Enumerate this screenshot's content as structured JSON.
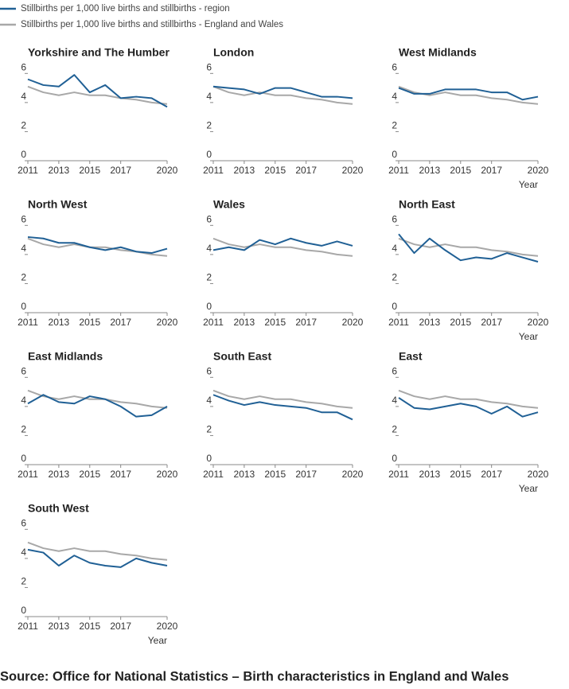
{
  "legend": [
    {
      "name": "Stillbirths per 1,000 live births and stillbirths - region",
      "color": "#206095"
    },
    {
      "name": "Stillbirths per 1,000 live births and stillbirths - England and Wales",
      "color": "#a8a8a8"
    }
  ],
  "chart_data": [
    {
      "type": "line",
      "title": "Yorkshire and The Humber",
      "x": [
        2011,
        2012,
        2013,
        2014,
        2015,
        2016,
        2017,
        2018,
        2019,
        2020
      ],
      "xticks": [
        2011,
        2013,
        2015,
        2017,
        2020
      ],
      "ylim": [
        0,
        6.4
      ],
      "yticks": [
        0,
        2,
        4,
        6
      ],
      "series": [
        {
          "values": [
            5.6,
            5.2,
            5.1,
            5.9,
            4.7,
            5.2,
            4.3,
            4.4,
            4.3,
            3.7
          ]
        },
        {
          "values": [
            5.1,
            4.7,
            4.5,
            4.7,
            4.5,
            4.5,
            4.3,
            4.2,
            4.0,
            3.9
          ]
        }
      ]
    },
    {
      "type": "line",
      "title": "London",
      "x": [
        2011,
        2012,
        2013,
        2014,
        2015,
        2016,
        2017,
        2018,
        2019,
        2020
      ],
      "xticks": [
        2011,
        2013,
        2015,
        2017,
        2020
      ],
      "ylim": [
        0,
        6.4
      ],
      "yticks": [
        0,
        2,
        4,
        6
      ],
      "series": [
        {
          "values": [
            5.1,
            5.0,
            4.9,
            4.6,
            5.0,
            5.0,
            4.7,
            4.4,
            4.4,
            4.3
          ]
        },
        {
          "values": [
            5.1,
            4.7,
            4.5,
            4.7,
            4.5,
            4.5,
            4.3,
            4.2,
            4.0,
            3.9
          ]
        }
      ]
    },
    {
      "type": "line",
      "title": "West Midlands",
      "x": [
        2011,
        2012,
        2013,
        2014,
        2015,
        2016,
        2017,
        2018,
        2019,
        2020
      ],
      "xticks": [
        2011,
        2013,
        2015,
        2017,
        2020
      ],
      "ylim": [
        0,
        6.4
      ],
      "yticks": [
        0,
        2,
        4,
        6
      ],
      "xlabel": "Year",
      "series": [
        {
          "values": [
            5.0,
            4.6,
            4.6,
            4.9,
            4.9,
            4.9,
            4.7,
            4.7,
            4.2,
            4.4
          ]
        },
        {
          "values": [
            5.1,
            4.7,
            4.5,
            4.7,
            4.5,
            4.5,
            4.3,
            4.2,
            4.0,
            3.9
          ]
        }
      ]
    },
    {
      "type": "line",
      "title": "North West",
      "x": [
        2011,
        2012,
        2013,
        2014,
        2015,
        2016,
        2017,
        2018,
        2019,
        2020
      ],
      "xticks": [
        2011,
        2013,
        2015,
        2017,
        2020
      ],
      "ylim": [
        0,
        6.4
      ],
      "yticks": [
        0,
        2,
        4,
        6
      ],
      "series": [
        {
          "values": [
            5.2,
            5.1,
            4.8,
            4.8,
            4.5,
            4.3,
            4.5,
            4.2,
            4.1,
            4.4
          ]
        },
        {
          "values": [
            5.1,
            4.7,
            4.5,
            4.7,
            4.5,
            4.5,
            4.3,
            4.2,
            4.0,
            3.9
          ]
        }
      ]
    },
    {
      "type": "line",
      "title": "Wales",
      "x": [
        2011,
        2012,
        2013,
        2014,
        2015,
        2016,
        2017,
        2018,
        2019,
        2020
      ],
      "xticks": [
        2011,
        2013,
        2015,
        2017,
        2020
      ],
      "ylim": [
        0,
        6.4
      ],
      "yticks": [
        0,
        2,
        4,
        6
      ],
      "series": [
        {
          "values": [
            4.3,
            4.5,
            4.3,
            5.0,
            4.7,
            5.1,
            4.8,
            4.6,
            4.9,
            4.6
          ]
        },
        {
          "values": [
            5.1,
            4.7,
            4.5,
            4.7,
            4.5,
            4.5,
            4.3,
            4.2,
            4.0,
            3.9
          ]
        }
      ]
    },
    {
      "type": "line",
      "title": "North East",
      "x": [
        2011,
        2012,
        2013,
        2014,
        2015,
        2016,
        2017,
        2018,
        2019,
        2020
      ],
      "xticks": [
        2011,
        2013,
        2015,
        2017,
        2020
      ],
      "ylim": [
        0,
        6.4
      ],
      "yticks": [
        0,
        2,
        4,
        6
      ],
      "xlabel": "Year",
      "series": [
        {
          "values": [
            5.4,
            4.1,
            5.1,
            4.3,
            3.6,
            3.8,
            3.7,
            4.1,
            3.8,
            3.5
          ]
        },
        {
          "values": [
            5.1,
            4.7,
            4.5,
            4.7,
            4.5,
            4.5,
            4.3,
            4.2,
            4.0,
            3.9
          ]
        }
      ]
    },
    {
      "type": "line",
      "title": "East Midlands",
      "x": [
        2011,
        2012,
        2013,
        2014,
        2015,
        2016,
        2017,
        2018,
        2019,
        2020
      ],
      "xticks": [
        2011,
        2013,
        2015,
        2017,
        2020
      ],
      "ylim": [
        0,
        6.4
      ],
      "yticks": [
        0,
        2,
        4,
        6
      ],
      "series": [
        {
          "values": [
            4.2,
            4.8,
            4.3,
            4.2,
            4.7,
            4.5,
            4.0,
            3.3,
            3.4,
            4.0
          ]
        },
        {
          "values": [
            5.1,
            4.7,
            4.5,
            4.7,
            4.5,
            4.5,
            4.3,
            4.2,
            4.0,
            3.9
          ]
        }
      ]
    },
    {
      "type": "line",
      "title": "South East",
      "x": [
        2011,
        2012,
        2013,
        2014,
        2015,
        2016,
        2017,
        2018,
        2019,
        2020
      ],
      "xticks": [
        2011,
        2013,
        2015,
        2017,
        2020
      ],
      "ylim": [
        0,
        6.4
      ],
      "yticks": [
        0,
        2,
        4,
        6
      ],
      "series": [
        {
          "values": [
            4.8,
            4.4,
            4.1,
            4.3,
            4.1,
            4.0,
            3.9,
            3.6,
            3.6,
            3.1
          ]
        },
        {
          "values": [
            5.1,
            4.7,
            4.5,
            4.7,
            4.5,
            4.5,
            4.3,
            4.2,
            4.0,
            3.9
          ]
        }
      ]
    },
    {
      "type": "line",
      "title": "East",
      "x": [
        2011,
        2012,
        2013,
        2014,
        2015,
        2016,
        2017,
        2018,
        2019,
        2020
      ],
      "xticks": [
        2011,
        2013,
        2015,
        2017,
        2020
      ],
      "ylim": [
        0,
        6.4
      ],
      "yticks": [
        0,
        2,
        4,
        6
      ],
      "xlabel": "Year",
      "series": [
        {
          "values": [
            4.6,
            3.9,
            3.8,
            4.0,
            4.2,
            4.0,
            3.5,
            4.0,
            3.3,
            3.6
          ]
        },
        {
          "values": [
            5.1,
            4.7,
            4.5,
            4.7,
            4.5,
            4.5,
            4.3,
            4.2,
            4.0,
            3.9
          ]
        }
      ]
    },
    {
      "type": "line",
      "title": "South West",
      "x": [
        2011,
        2012,
        2013,
        2014,
        2015,
        2016,
        2017,
        2018,
        2019,
        2020
      ],
      "xticks": [
        2011,
        2013,
        2015,
        2017,
        2020
      ],
      "ylim": [
        0,
        6.4
      ],
      "yticks": [
        0,
        2,
        4,
        6
      ],
      "xlabel": "Year",
      "series": [
        {
          "values": [
            4.6,
            4.4,
            3.5,
            4.2,
            3.7,
            3.5,
            3.4,
            4.0,
            3.7,
            3.5
          ]
        },
        {
          "values": [
            5.1,
            4.7,
            4.5,
            4.7,
            4.5,
            4.5,
            4.3,
            4.2,
            4.0,
            3.9
          ]
        }
      ]
    }
  ],
  "source": "Source: Office for National Statistics – Birth characteristics in England and Wales"
}
